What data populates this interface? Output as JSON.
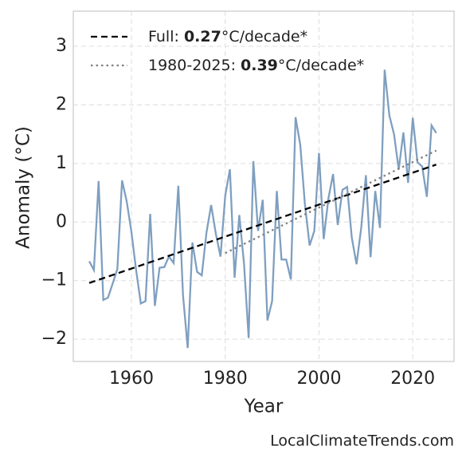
{
  "chart_data": {
    "type": "line",
    "xlabel": "Year",
    "ylabel": "Anomaly (°C)",
    "source": "LocalClimateTrends.com",
    "xlim": [
      1947.6,
      2028.8
    ],
    "ylim": [
      -2.38,
      3.6
    ],
    "xticks": [
      1960,
      1980,
      2000,
      2020
    ],
    "yticks": [
      {
        "value": -2,
        "label": "−2"
      },
      {
        "value": -1,
        "label": "−1"
      },
      0,
      1,
      2,
      3
    ],
    "grid": true,
    "legend": "upper left",
    "series": [
      {
        "color": "#7f9fc0",
        "style": "solid",
        "x": [
          1951,
          1952,
          1953,
          1954,
          1955,
          1956,
          1957,
          1958,
          1959,
          1960,
          1961,
          1962,
          1963,
          1964,
          1965,
          1966,
          1967,
          1968,
          1969,
          1970,
          1971,
          1972,
          1973,
          1974,
          1975,
          1976,
          1977,
          1978,
          1979,
          1980,
          1981,
          1982,
          1983,
          1984,
          1985,
          1986,
          1987,
          1988,
          1989,
          1990,
          1991,
          1992,
          1993,
          1994,
          1995,
          1996,
          1997,
          1998,
          1999,
          2000,
          2001,
          2002,
          2003,
          2004,
          2005,
          2006,
          2007,
          2008,
          2009,
          2010,
          2011,
          2012,
          2013,
          2014,
          2015,
          2016,
          2017,
          2018,
          2019,
          2020,
          2021,
          2022,
          2023,
          2024,
          2025
        ],
        "values": [
          -0.67,
          -0.82,
          0.7,
          -1.33,
          -1.29,
          -1.05,
          -0.8,
          0.71,
          0.35,
          -0.17,
          -0.82,
          -1.39,
          -1.35,
          0.14,
          -1.43,
          -0.78,
          -0.77,
          -0.59,
          -0.7,
          0.62,
          -1.25,
          -2.15,
          -0.35,
          -0.85,
          -0.91,
          -0.18,
          0.29,
          -0.2,
          -0.59,
          0.45,
          0.9,
          -0.95,
          0.12,
          -0.7,
          -1.98,
          1.04,
          -0.15,
          0.38,
          -1.68,
          -1.35,
          0.53,
          -0.64,
          -0.64,
          -0.98,
          1.79,
          1.32,
          0.3,
          -0.4,
          -0.15,
          1.18,
          -0.29,
          0.4,
          0.82,
          -0.05,
          0.55,
          0.6,
          -0.27,
          -0.72,
          -0.1,
          0.8,
          -0.6,
          0.53,
          -0.1,
          2.6,
          1.82,
          1.5,
          0.9,
          1.53,
          0.67,
          1.78,
          1.02,
          0.95,
          0.43,
          1.65,
          1.52
        ]
      },
      {
        "name_parts": [
          "Full: ",
          "0.27",
          "°C/decade*"
        ],
        "color": "#000000",
        "style": "dashed",
        "x": [
          1951,
          2025
        ],
        "values": [
          -1.04,
          0.98
        ]
      },
      {
        "name_parts": [
          "1980-2025: ",
          "0.39",
          "°C/decade*"
        ],
        "color": "#808080",
        "style": "dotted",
        "x": [
          1980,
          2025
        ],
        "values": [
          -0.53,
          1.22
        ]
      }
    ]
  }
}
